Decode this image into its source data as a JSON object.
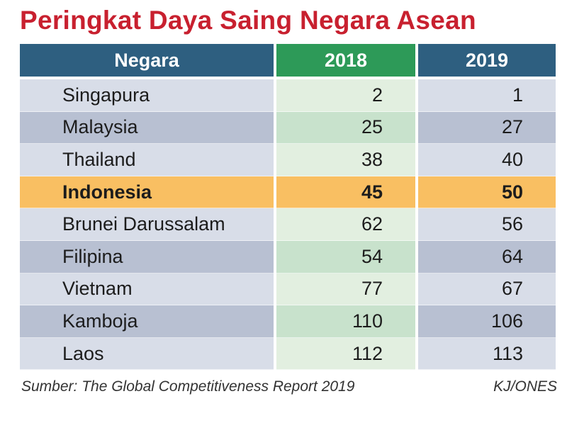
{
  "title": "Peringkat Daya Saing Negara Asean",
  "colors": {
    "title": "#c8202f",
    "header_country": "#2e5f80",
    "header_2018": "#2d9a58",
    "header_2019": "#2e5f80",
    "row_light_country": "#d8dde8",
    "row_dark_country": "#b8c0d2",
    "row_light_2018": "#e2efe0",
    "row_dark_2018": "#c8e2cc",
    "highlight": "#f9bf62"
  },
  "chart_data": {
    "type": "table",
    "title": "Peringkat Daya Saing Negara Asean",
    "columns": [
      "Negara",
      "2018",
      "2019"
    ],
    "rows": [
      {
        "negara": "Singapura",
        "y2018": 2,
        "y2019": 1,
        "highlight": false
      },
      {
        "negara": "Malaysia",
        "y2018": 25,
        "y2019": 27,
        "highlight": false
      },
      {
        "negara": "Thailand",
        "y2018": 38,
        "y2019": 40,
        "highlight": false
      },
      {
        "negara": "Indonesia",
        "y2018": 45,
        "y2019": 50,
        "highlight": true
      },
      {
        "negara": "Brunei Darussalam",
        "y2018": 62,
        "y2019": 56,
        "highlight": false
      },
      {
        "negara": "Filipina",
        "y2018": 54,
        "y2019": 64,
        "highlight": false
      },
      {
        "negara": "Vietnam",
        "y2018": 77,
        "y2019": 67,
        "highlight": false
      },
      {
        "negara": "Kamboja",
        "y2018": 110,
        "y2019": 106,
        "highlight": false
      },
      {
        "negara": "Laos",
        "y2018": 112,
        "y2019": 113,
        "highlight": false
      }
    ]
  },
  "footer": {
    "source": "Sumber: The Global Competitiveness Report 2019",
    "credit": "KJ/ONES"
  }
}
